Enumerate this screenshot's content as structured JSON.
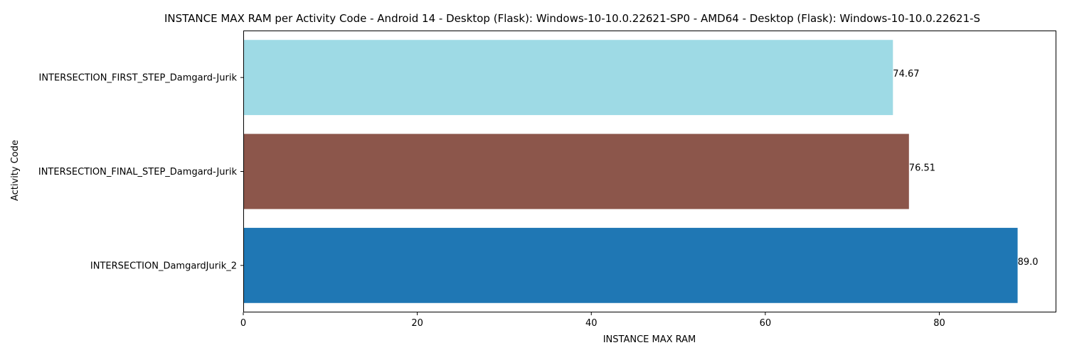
{
  "chart_data": {
    "type": "bar",
    "orientation": "horizontal",
    "title": "INSTANCE MAX RAM per Activity Code - Android 14 - Desktop (Flask): Windows-10-10.0.22621-SP0 - AMD64 - Desktop (Flask): Windows-10-10.0.22621-S",
    "xlabel": "INSTANCE MAX RAM",
    "ylabel": "Activity Code",
    "categories": [
      "INTERSECTION_FIRST_STEP_Damgard-Jurik",
      "INTERSECTION_FINAL_STEP_Damgard-Jurik",
      "INTERSECTION_DamgardJurik_2"
    ],
    "values": [
      74.67,
      76.51,
      89.0
    ],
    "value_labels": [
      "74.67",
      "76.51",
      "89.0"
    ],
    "colors": [
      "#9edae5",
      "#8c564b",
      "#1f77b4"
    ],
    "xlim": [
      0,
      93.45
    ],
    "xticks": [
      0,
      20,
      40,
      60,
      80
    ],
    "xtick_labels": [
      "0",
      "20",
      "40",
      "60",
      "80"
    ],
    "grid": false,
    "legend": "none"
  }
}
